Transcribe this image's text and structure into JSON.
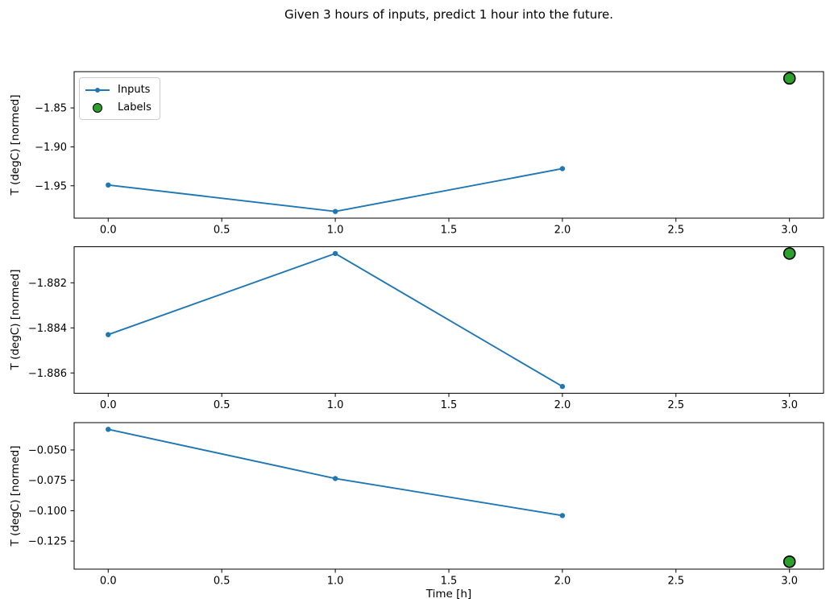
{
  "figure": {
    "title": "Given 3 hours of inputs, predict 1 hour into the future.",
    "xlabel": "Time [h]",
    "background": "#ffffff"
  },
  "legend": {
    "items": [
      {
        "label": "Inputs",
        "type": "line-marker"
      },
      {
        "label": "Labels",
        "type": "scatter"
      }
    ]
  },
  "colors": {
    "inputs_line": "#1f77b4",
    "labels_marker": "#2ca02c",
    "marker_edge": "#000000",
    "axis": "#000000",
    "text": "#000000"
  },
  "chart_data": [
    {
      "type": "line",
      "ylabel": "T (degC) [normed]",
      "x": [
        0.0,
        1.0,
        2.0
      ],
      "series": [
        {
          "name": "Inputs",
          "values": [
            -1.949,
            -1.983,
            -1.928
          ]
        }
      ],
      "label_point": {
        "name": "Labels",
        "x": 3.0,
        "y": -1.812
      },
      "xlim": [
        -0.15,
        3.15
      ],
      "ylim": [
        -1.9916,
        -1.8034
      ],
      "xticks": [
        0.0,
        0.5,
        1.0,
        1.5,
        2.0,
        2.5,
        3.0
      ],
      "xtick_labels": [
        "0.0",
        "0.5",
        "1.0",
        "1.5",
        "2.0",
        "2.5",
        "3.0"
      ],
      "yticks": [
        -1.85,
        -1.9,
        -1.95
      ],
      "ytick_labels": [
        "−1.85",
        "−1.90",
        "−1.95"
      ],
      "grid": false,
      "legend_position": "upper left"
    },
    {
      "type": "line",
      "ylabel": "T (degC) [normed]",
      "x": [
        0.0,
        1.0,
        2.0
      ],
      "series": [
        {
          "name": "Inputs",
          "values": [
            -1.8843,
            -1.8807,
            -1.8866
          ]
        }
      ],
      "label_point": {
        "name": "Labels",
        "x": 3.0,
        "y": -1.8807
      },
      "xlim": [
        -0.15,
        3.15
      ],
      "ylim": [
        -1.8869,
        -1.8804
      ],
      "xticks": [
        0.0,
        0.5,
        1.0,
        1.5,
        2.0,
        2.5,
        3.0
      ],
      "xtick_labels": [
        "0.0",
        "0.5",
        "1.0",
        "1.5",
        "2.0",
        "2.5",
        "3.0"
      ],
      "yticks": [
        -1.882,
        -1.884,
        -1.886
      ],
      "ytick_labels": [
        "−1.882",
        "−1.884",
        "−1.886"
      ],
      "grid": false
    },
    {
      "type": "line",
      "ylabel": "T (degC) [normed]",
      "x": [
        0.0,
        1.0,
        2.0
      ],
      "series": [
        {
          "name": "Inputs",
          "values": [
            -0.033,
            -0.0735,
            -0.104
          ]
        }
      ],
      "label_point": {
        "name": "Labels",
        "x": 3.0,
        "y": -0.142
      },
      "xlim": [
        -0.15,
        3.15
      ],
      "ylim": [
        -0.1481,
        -0.0275
      ],
      "xticks": [
        0.0,
        0.5,
        1.0,
        1.5,
        2.0,
        2.5,
        3.0
      ],
      "xtick_labels": [
        "0.0",
        "0.5",
        "1.0",
        "1.5",
        "2.0",
        "2.5",
        "3.0"
      ],
      "yticks": [
        -0.05,
        -0.075,
        -0.1,
        -0.125
      ],
      "ytick_labels": [
        "−0.050",
        "−0.075",
        "−0.100",
        "−0.125"
      ],
      "grid": false
    }
  ]
}
